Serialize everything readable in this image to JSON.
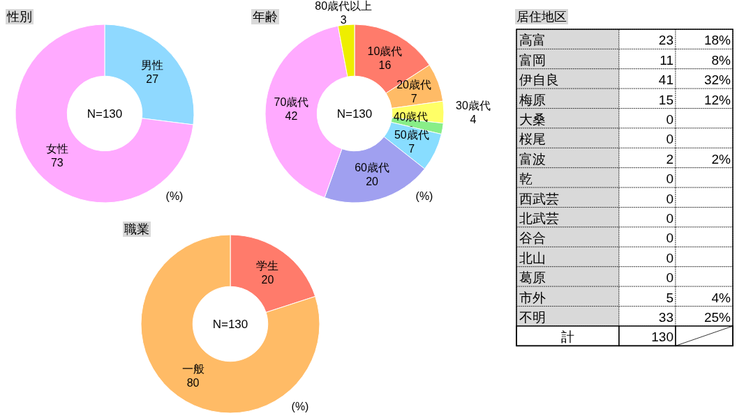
{
  "chart_data": [
    {
      "type": "donut",
      "title": "性別",
      "categories": [
        "男性",
        "女性"
      ],
      "values": [
        27,
        73
      ],
      "colors": [
        "#8fd9ff",
        "#ffaaff"
      ],
      "data_labels": true,
      "annotations": [
        "N=130",
        "(%)"
      ]
    },
    {
      "type": "donut",
      "title": "年齢",
      "categories": [
        "10歳代",
        "20歳代",
        "30歳代",
        "40歳代",
        "50歳代",
        "60歳代",
        "70歳代",
        "80歳代以上"
      ],
      "values": [
        16,
        7,
        4,
        2,
        7,
        20,
        42,
        3
      ],
      "colors": [
        "#ff7b6b",
        "#ffbb66",
        "#ffff66",
        "#88ee88",
        "#88ddff",
        "#a0a0f0",
        "#ffaaff",
        "#eeee00"
      ],
      "data_labels": true,
      "annotations": [
        "N=130",
        "(%)"
      ]
    },
    {
      "type": "donut",
      "title": "職業",
      "categories": [
        "学生",
        "一般"
      ],
      "values": [
        20,
        80
      ],
      "colors": [
        "#ff7b6b",
        "#ffbb66"
      ],
      "data_labels": true,
      "annotations": [
        "N=130",
        "(%)"
      ]
    },
    {
      "type": "other",
      "title": "居住地区",
      "categories": [
        "高富",
        "富岡",
        "伊自良",
        "梅原",
        "大桑",
        "桜尾",
        "富波",
        "乾",
        "西武芸",
        "北武芸",
        "谷合",
        "北山",
        "葛原",
        "市外",
        "不明",
        "計"
      ],
      "series": [
        {
          "values": [
            23,
            11,
            41,
            15,
            0,
            0,
            2,
            0,
            0,
            0,
            0,
            0,
            0,
            5,
            33,
            130
          ]
        },
        {
          "values": [
            18,
            8,
            32,
            12,
            null,
            null,
            2,
            null,
            null,
            null,
            null,
            null,
            null,
            4,
            25,
            null
          ],
          "value_labels": [
            "18%",
            "8%",
            "32%",
            "12%",
            null,
            null,
            "2%",
            null,
            null,
            null,
            null,
            null,
            null,
            "4%",
            "25%",
            null
          ]
        }
      ],
      "data_labels": true
    }
  ]
}
